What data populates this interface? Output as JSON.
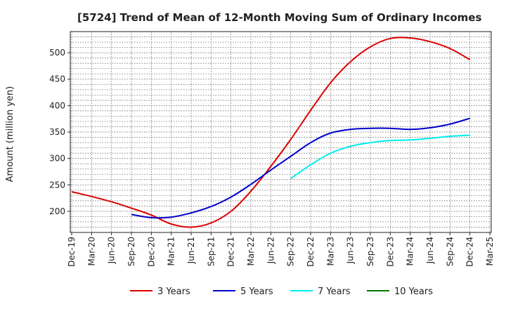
{
  "chart_data": {
    "type": "line",
    "title": "[5724]  Trend of Mean of 12-Month Moving Sum of Ordinary Incomes",
    "xlabel": "",
    "ylabel": "Amount (million yen)",
    "ylim": [
      160,
      540
    ],
    "yticks": [
      200,
      250,
      300,
      350,
      400,
      450,
      500
    ],
    "grid": true,
    "legend_position": "bottom",
    "categories": [
      "Dec-19",
      "Mar-20",
      "Jun-20",
      "Sep-20",
      "Dec-20",
      "Mar-21",
      "Jun-21",
      "Sep-21",
      "Dec-21",
      "Mar-22",
      "Jun-22",
      "Sep-22",
      "Dec-22",
      "Mar-23",
      "Jun-23",
      "Sep-23",
      "Dec-23",
      "Mar-24",
      "Jun-24",
      "Sep-24",
      "Dec-24",
      "Mar-25"
    ],
    "series": [
      {
        "name": "3 Years",
        "color": "#dd0000",
        "values": [
          237,
          228,
          218,
          206,
          193,
          176,
          170,
          178,
          200,
          238,
          285,
          336,
          391,
          443,
          483,
          511,
          527,
          528,
          521,
          508,
          487,
          null
        ]
      },
      {
        "name": "5 Years",
        "color": "#0000cc",
        "values": [
          null,
          null,
          null,
          194,
          188,
          189,
          197,
          209,
          227,
          251,
          278,
          304,
          330,
          348,
          355,
          357,
          357,
          355,
          358,
          365,
          376,
          null
        ]
      },
      {
        "name": "7 Years",
        "color": "#00eeee",
        "values": [
          null,
          null,
          null,
          null,
          null,
          null,
          null,
          null,
          null,
          null,
          null,
          262,
          288,
          310,
          323,
          330,
          334,
          335,
          338,
          342,
          344,
          null
        ]
      },
      {
        "name": "10 Years",
        "color": "#007700",
        "values": [
          null,
          null,
          null,
          null,
          null,
          null,
          null,
          null,
          null,
          null,
          null,
          null,
          null,
          null,
          null,
          null,
          null,
          null,
          null,
          null,
          null,
          null
        ]
      }
    ]
  }
}
